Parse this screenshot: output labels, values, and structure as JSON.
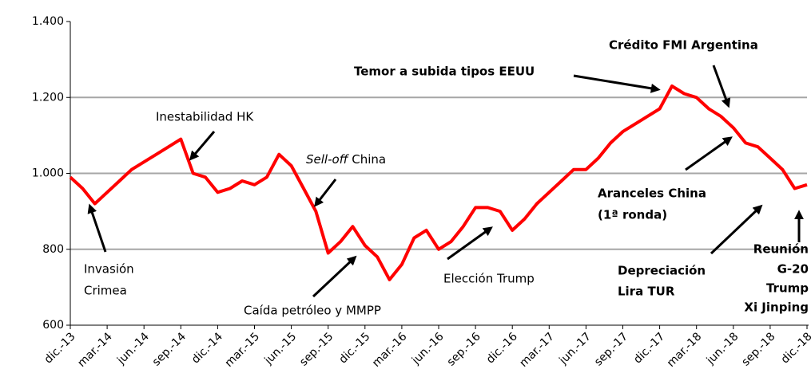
{
  "chart_data": {
    "type": "line",
    "categories": [
      "dic.-13",
      null,
      null,
      "mar.-14",
      null,
      null,
      "jun.-14",
      null,
      null,
      "sep.-14",
      null,
      null,
      "dic.-14",
      null,
      null,
      "mar.-15",
      null,
      null,
      "jun.-15",
      null,
      null,
      "sep.-15",
      null,
      null,
      "dic.-15",
      null,
      null,
      "mar.-16",
      null,
      null,
      "jun.-16",
      null,
      null,
      "sep.-16",
      null,
      null,
      "dic.-16",
      null,
      null,
      "mar.-17",
      null,
      null,
      "jun.-17",
      null,
      null,
      "sep.-17",
      null,
      null,
      "dic.-17",
      null,
      null,
      "mar.-18",
      null,
      null,
      "jun.-18",
      null,
      null,
      "sep.-18",
      null,
      null,
      "dic.-18"
    ],
    "series": [
      {
        "name": null,
        "color": "#ff0000",
        "values": [
          990,
          960,
          920,
          950,
          980,
          1010,
          1030,
          1050,
          1070,
          1090,
          1000,
          990,
          950,
          960,
          980,
          970,
          990,
          1050,
          1020,
          960,
          900,
          790,
          820,
          860,
          810,
          780,
          720,
          760,
          830,
          850,
          800,
          820,
          860,
          910,
          910,
          900,
          850,
          880,
          920,
          950,
          980,
          1010,
          1010,
          1040,
          1080,
          1110,
          1130,
          1150,
          1170,
          1230,
          1210,
          1200,
          1170,
          1150,
          1120,
          1080,
          1070,
          1040,
          1010,
          960,
          970
        ]
      }
    ],
    "ylim": [
      600,
      1400
    ],
    "yticks": [
      600,
      800,
      {
        "value": 1000,
        "label": "1.000"
      },
      {
        "value": 1200,
        "label": "1.200"
      },
      {
        "value": 1400,
        "label": "1.400"
      }
    ],
    "grid": true,
    "annotations": [
      [
        "Invasión",
        "Crimea"
      ],
      [
        "Inestabilidad HK"
      ],
      [
        "Sell-off",
        " China"
      ],
      [
        "Caída petróleo y MMPP"
      ],
      [
        "Elección Trump"
      ],
      [
        "Temor a subida tipos EEUU"
      ],
      [
        "Crédito FMI Argentina"
      ],
      [
        "Aranceles China",
        "(1ª ronda)"
      ],
      [
        "Depreciación",
        "Lira TUR"
      ],
      [
        "Reunión",
        "G-20",
        "Trump",
        "Xi Jinping"
      ]
    ]
  }
}
